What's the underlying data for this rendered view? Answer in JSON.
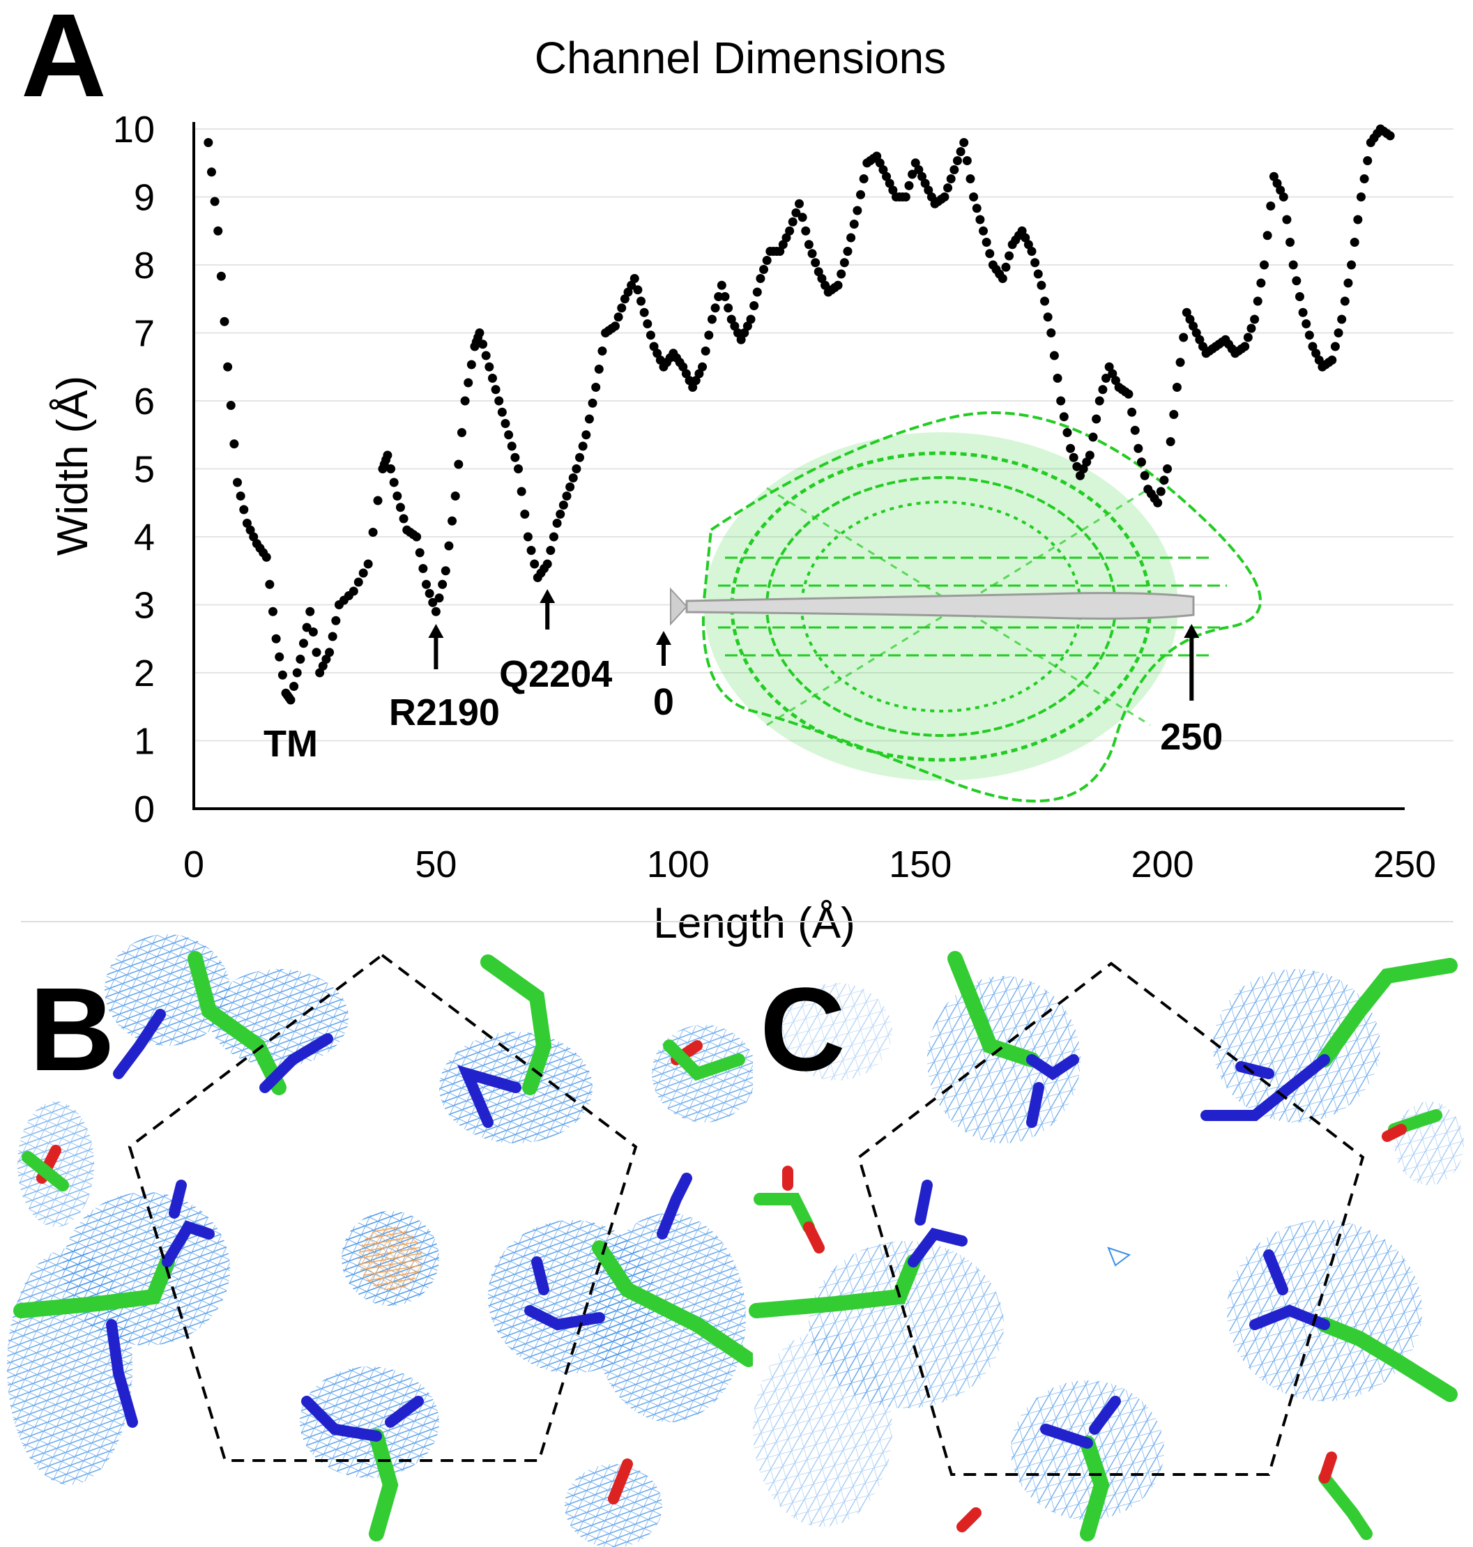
{
  "panels": {
    "a": "A",
    "b": "B",
    "c": "C"
  },
  "chart_data": {
    "type": "scatter",
    "title": "Channel Dimensions",
    "xlabel": "Length (Å)",
    "ylabel": "Width (Å)",
    "xlim": [
      0,
      250
    ],
    "ylim": [
      0,
      10
    ],
    "xticks": [
      0,
      50,
      100,
      150,
      200,
      250
    ],
    "yticks": [
      0,
      1,
      2,
      3,
      4,
      5,
      6,
      7,
      8,
      9,
      10
    ],
    "grid": "horizontal",
    "series": [
      {
        "name": "Channel width",
        "marker": "dot",
        "color": "#000000",
        "x": [
          3,
          5,
          7,
          9,
          11,
          13,
          15,
          17,
          19,
          20,
          22,
          24,
          26,
          28,
          30,
          33,
          36,
          39,
          40,
          42,
          44,
          46,
          48,
          50,
          52,
          54,
          56,
          58,
          59,
          61,
          63,
          65,
          67,
          69,
          71,
          73,
          75,
          77,
          79,
          81,
          83,
          85,
          87,
          89,
          91,
          93,
          95,
          97,
          99,
          101,
          103,
          105,
          107,
          109,
          111,
          113,
          115,
          117,
          119,
          121,
          123,
          125,
          127,
          129,
          131,
          133,
          135,
          137,
          139,
          141,
          143,
          145,
          147,
          149,
          151,
          153,
          155,
          157,
          159,
          161,
          163,
          165,
          167,
          169,
          171,
          173,
          175,
          177,
          179,
          181,
          183,
          185,
          187,
          189,
          191,
          193,
          195,
          197,
          199,
          201,
          203,
          205,
          207,
          209,
          211,
          213,
          215,
          217,
          219,
          221,
          223,
          225,
          227,
          229,
          231,
          233,
          235,
          237,
          239,
          241,
          243,
          245,
          247
        ],
        "y": [
          9.8,
          8.5,
          6.5,
          4.8,
          4.2,
          3.9,
          3.7,
          2.5,
          1.7,
          1.6,
          2.2,
          2.9,
          2.0,
          2.3,
          3.0,
          3.2,
          3.6,
          5.0,
          5.2,
          4.6,
          4.1,
          4.0,
          3.3,
          2.9,
          3.5,
          4.6,
          6.0,
          6.8,
          7.0,
          6.5,
          6.0,
          5.5,
          5.0,
          4.0,
          3.4,
          3.6,
          4.2,
          4.6,
          5.0,
          5.5,
          6.2,
          7.0,
          7.1,
          7.5,
          7.8,
          7.3,
          6.8,
          6.5,
          6.7,
          6.5,
          6.2,
          6.5,
          7.2,
          7.7,
          7.2,
          6.9,
          7.2,
          7.8,
          8.2,
          8.2,
          8.5,
          8.9,
          8.3,
          7.9,
          7.6,
          7.7,
          8.2,
          8.8,
          9.5,
          9.6,
          9.3,
          9.0,
          9.0,
          9.5,
          9.2,
          8.9,
          9.0,
          9.4,
          9.8,
          9.0,
          8.5,
          8.0,
          7.8,
          8.3,
          8.5,
          8.2,
          7.7,
          7.0,
          6.0,
          5.3,
          4.9,
          5.2,
          6.0,
          6.5,
          6.2,
          6.1,
          5.3,
          4.7,
          4.5,
          5.0,
          6.2,
          7.3,
          7.0,
          6.7,
          6.8,
          6.9,
          6.7,
          6.8,
          7.2,
          8.0,
          9.3,
          9.0,
          8.0,
          7.3,
          6.8,
          6.5,
          6.6,
          7.2,
          8.0,
          9.0,
          9.8,
          10.0,
          9.9
        ]
      }
    ],
    "annotations": [
      {
        "label": "TM",
        "x": 20,
        "arrow": false
      },
      {
        "label": "R2190",
        "x": 50,
        "arrow": true
      },
      {
        "label": "Q2204",
        "x": 73,
        "arrow": true
      },
      {
        "label": "0",
        "x": 97,
        "arrow": true
      },
      {
        "label": "250",
        "x": 206,
        "arrow": true
      }
    ]
  },
  "inset": {
    "description_icon": "protein-channel-ribbon-icon",
    "ribbon_color": "#22cc22",
    "pore_color": "#d8d8d8"
  },
  "density_panels": {
    "mesh_color": "#3a8ee8",
    "carbon_color": "#33cc33",
    "nitrogen_color": "#2222cc",
    "oxygen_color": "#dd2222",
    "ion_color": "#f0a050"
  }
}
